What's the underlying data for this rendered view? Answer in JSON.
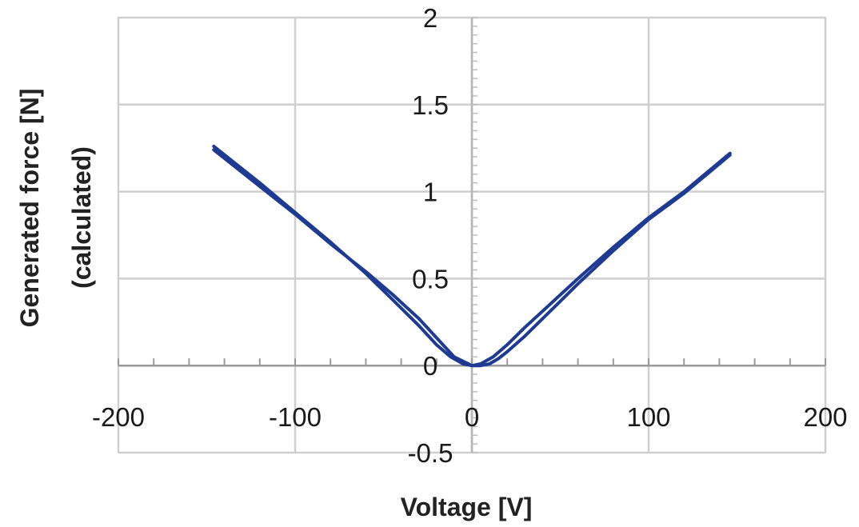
{
  "chart_data": {
    "type": "line",
    "title": "",
    "xlabel": "Voltage [V]",
    "ylabel_lines": [
      "Generated force [N]",
      "(calculated)"
    ],
    "xlim": [
      -200,
      200
    ],
    "ylim": [
      -0.5,
      2
    ],
    "x_ticks": [
      -200,
      -100,
      0,
      100,
      200
    ],
    "x_tick_labels": [
      "-200",
      "-100",
      "0",
      "100",
      "200"
    ],
    "y_ticks": [
      -0.5,
      0,
      0.5,
      1,
      1.5,
      2
    ],
    "y_tick_labels": [
      "-0.5",
      "0",
      "0.5",
      "1",
      "1.5",
      "2"
    ],
    "grid": true,
    "line_color": "#1f3a93",
    "grid_color": "#cfcfcf",
    "series": [
      {
        "values_note": "",
        "x": [
          -146,
          -120,
          -100,
          -80,
          -60,
          -45,
          -30,
          -20,
          -12,
          -5,
          0,
          5,
          12,
          20,
          30,
          45,
          60,
          80,
          100,
          120,
          146
        ],
        "y": [
          1.26,
          1.05,
          0.88,
          0.71,
          0.53,
          0.38,
          0.23,
          0.12,
          0.05,
          0.01,
          0.0,
          0.01,
          0.05,
          0.12,
          0.22,
          0.36,
          0.5,
          0.68,
          0.85,
          1.0,
          1.22
        ]
      },
      {
        "values_note": "",
        "x": [
          -146,
          -120,
          -100,
          -80,
          -60,
          -45,
          -30,
          -20,
          -10,
          0,
          5,
          10,
          15,
          20,
          30,
          45,
          60,
          80,
          100,
          120,
          146
        ],
        "y": [
          1.24,
          1.03,
          0.87,
          0.7,
          0.54,
          0.41,
          0.27,
          0.16,
          0.05,
          0.0,
          0.0,
          0.01,
          0.04,
          0.08,
          0.17,
          0.32,
          0.47,
          0.66,
          0.84,
          0.99,
          1.21
        ]
      }
    ]
  }
}
